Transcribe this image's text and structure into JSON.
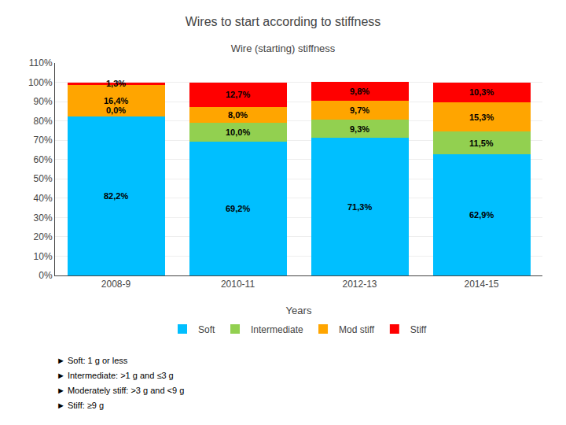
{
  "chart_data": {
    "type": "bar",
    "title": "Wires to start according to stiffness",
    "subtitle": "Wire (starting) stiffness",
    "xlabel": "Years",
    "categories": [
      "2008-9",
      "2010-11",
      "2012-13",
      "2014-15"
    ],
    "stacked": true,
    "data_labels": true,
    "grid": true,
    "legend": "bottom",
    "ylim": [
      0,
      110
    ],
    "yticks": [
      {
        "value": 0,
        "label": "0%"
      },
      {
        "value": 10,
        "label": "10%"
      },
      {
        "value": 20,
        "label": "20%"
      },
      {
        "value": 30,
        "label": "30%"
      },
      {
        "value": 40,
        "label": "40%"
      },
      {
        "value": 50,
        "label": "50%"
      },
      {
        "value": 60,
        "label": "60%"
      },
      {
        "value": 70,
        "label": "70%"
      },
      {
        "value": 80,
        "label": "80%"
      },
      {
        "value": 90,
        "label": "90%"
      },
      {
        "value": 100,
        "label": "100%"
      },
      {
        "value": 110,
        "label": "110%"
      }
    ],
    "series": [
      {
        "name": "Soft",
        "color": "#00BFFF",
        "values": [
          82.2,
          69.2,
          71.3,
          62.9
        ],
        "value_labels": [
          "82,2%",
          "69,2%",
          "71,3%",
          "62,9%"
        ]
      },
      {
        "name": "Intermediate",
        "color": "#92D050",
        "values": [
          0.0,
          10.0,
          9.3,
          11.5
        ],
        "value_labels": [
          "0,0%",
          "10,0%",
          "9,3%",
          "11,5%"
        ]
      },
      {
        "name": "Mod stiff",
        "color": "#FFA500",
        "values": [
          16.4,
          8.0,
          9.7,
          15.3
        ],
        "value_labels": [
          "16,4%",
          "8,0%",
          "9,7%",
          "15,3%"
        ]
      },
      {
        "name": "Stiff",
        "color": "#FF0000",
        "values": [
          1.3,
          12.7,
          9.8,
          10.3
        ],
        "value_labels": [
          "1,3%",
          "12,7%",
          "9,8%",
          "10,3%"
        ]
      }
    ],
    "annotations": [
      "► Soft: 1 g or less",
      "► Intermediate: >1 g and ≤3 g",
      "► Moderately stiff: >3 g and <9 g",
      "► Stiff: ≥9 g"
    ]
  }
}
